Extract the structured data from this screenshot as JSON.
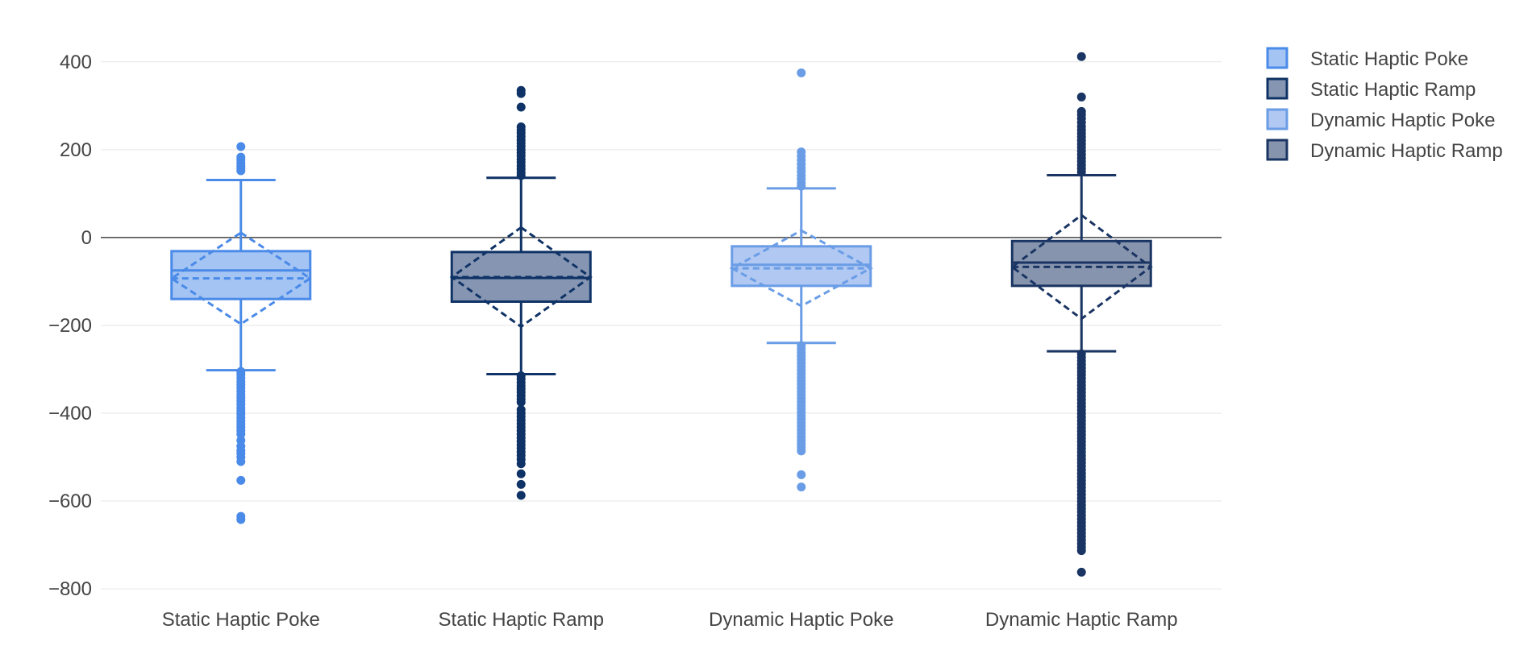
{
  "chart_data": {
    "type": "box",
    "title": "",
    "xlabel": "",
    "ylabel": "",
    "categories": [
      "Static Haptic Poke",
      "Static Haptic Ramp",
      "Dynamic Haptic Poke",
      "Dynamic Haptic Ramp"
    ],
    "ylim": [
      -820,
      440
    ],
    "yticks": [
      400,
      200,
      0,
      -200,
      -400,
      -600,
      -800
    ],
    "ytick_labels": [
      "400",
      "200",
      "0",
      "−200",
      "−400",
      "−600",
      "−800"
    ],
    "grid": true,
    "zeroline": true,
    "legend_position": "top-right",
    "boxmean": "sd",
    "series": [
      {
        "name": "Static Haptic Poke",
        "line_color": "#4a8ae8",
        "fill_color": "#a4c4f3",
        "lowerfence": -302,
        "q1": -140,
        "median": -75,
        "q3": -31,
        "upperfence": 131,
        "mean": -93,
        "sd": 104,
        "outliers": [
          207,
          183,
          177,
          170,
          163,
          158,
          152,
          -305,
          -312,
          -320,
          -328,
          -335,
          -342,
          -350,
          -358,
          -365,
          -372,
          -380,
          -388,
          -395,
          -402,
          -410,
          -418,
          -425,
          -432,
          -440,
          -448,
          -462,
          -475,
          -485,
          -492,
          -500,
          -510,
          -553,
          -635,
          -642
        ]
      },
      {
        "name": "Static Haptic Ramp",
        "line_color": "#0f3366",
        "fill_color": "#8696b2",
        "lowerfence": -311,
        "q1": -146,
        "median": -92,
        "q3": -33,
        "upperfence": 136,
        "mean": -90,
        "sd": 113,
        "outliers": [
          335,
          328,
          297,
          252,
          245,
          238,
          230,
          222,
          215,
          208,
          200,
          193,
          186,
          178,
          171,
          163,
          156,
          148,
          141,
          -315,
          -322,
          -330,
          -338,
          -345,
          -352,
          -360,
          -368,
          -375,
          -392,
          -400,
          -408,
          -416,
          -424,
          -432,
          -440,
          -448,
          -456,
          -464,
          -472,
          -480,
          -488,
          -496,
          -505,
          -515,
          -538,
          -562,
          -587
        ]
      },
      {
        "name": "Dynamic Haptic Poke",
        "line_color": "#6a9de6",
        "fill_color": "#b0c8f2",
        "lowerfence": -240,
        "q1": -110,
        "median": -62,
        "q3": -20,
        "upperfence": 112,
        "mean": -70,
        "sd": 86,
        "outliers": [
          375,
          195,
          185,
          176,
          167,
          158,
          150,
          141,
          133,
          124,
          117,
          -246,
          -254,
          -262,
          -270,
          -278,
          -286,
          -294,
          -302,
          -310,
          -318,
          -326,
          -334,
          -342,
          -350,
          -358,
          -366,
          -374,
          -382,
          -390,
          -398,
          -406,
          -414,
          -422,
          -430,
          -438,
          -446,
          -454,
          -462,
          -470,
          -478,
          -486,
          -540,
          -568
        ]
      },
      {
        "name": "Dynamic Haptic Ramp",
        "line_color": "#1a3563",
        "fill_color": "#8794ad",
        "lowerfence": -259,
        "q1": -110,
        "median": -57,
        "q3": -8,
        "upperfence": 142,
        "mean": -67,
        "sd": 118,
        "outliers": [
          412,
          320,
          287,
          280,
          271,
          262,
          253,
          245,
          237,
          229,
          221,
          213,
          205,
          197,
          189,
          181,
          173,
          165,
          157,
          149,
          -265,
          -273,
          -281,
          -289,
          -297,
          -305,
          -313,
          -321,
          -329,
          -337,
          -345,
          -353,
          -361,
          -369,
          -377,
          -385,
          -393,
          -401,
          -409,
          -417,
          -425,
          -433,
          -441,
          -449,
          -457,
          -465,
          -473,
          -481,
          -489,
          -497,
          -505,
          -513,
          -521,
          -529,
          -537,
          -545,
          -553,
          -561,
          -569,
          -577,
          -585,
          -593,
          -601,
          -609,
          -617,
          -625,
          -633,
          -641,
          -649,
          -657,
          -665,
          -673,
          -681,
          -689,
          -697,
          -705,
          -713,
          -762
        ]
      }
    ]
  }
}
